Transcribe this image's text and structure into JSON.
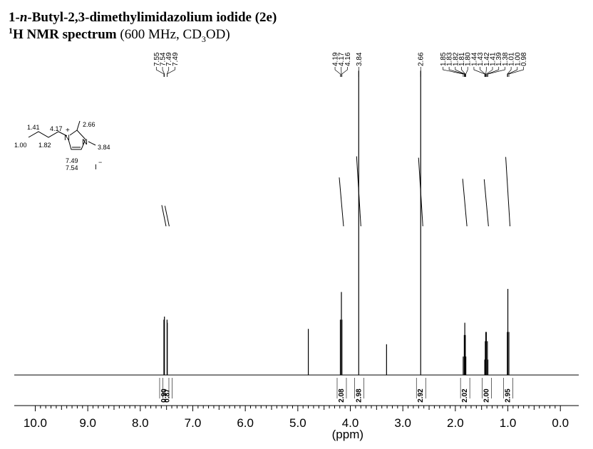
{
  "chart_data": {
    "type": "nmr",
    "title": [
      "1-",
      "n",
      "-Butyl-2,3-dimethylimidazolium iodide (2e)"
    ],
    "subtitle": [
      "1",
      "H NMR spectrum",
      " (600 MHz, CD",
      "3",
      "OD)"
    ],
    "xlabel": "(ppm)",
    "xlim": [
      10.4,
      -0.35
    ],
    "ylim": [
      0,
      1
    ],
    "xticks": [
      {
        "value": 10,
        "label": "10.0"
      },
      {
        "value": 9,
        "label": "9.0"
      },
      {
        "value": 8,
        "label": "8.0"
      },
      {
        "value": 7,
        "label": "7.0"
      },
      {
        "value": 6,
        "label": "6.0"
      },
      {
        "value": 5,
        "label": "5.0"
      },
      {
        "value": 4,
        "label": "4.0"
      },
      {
        "value": 3,
        "label": "3.0"
      },
      {
        "value": 2,
        "label": "2.0"
      },
      {
        "value": 1,
        "label": "1.0"
      },
      {
        "value": 0,
        "label": "0.0"
      }
    ],
    "color": "#000000",
    "x": [
      7.55,
      7.54,
      7.49,
      7.485,
      4.8,
      4.19,
      4.17,
      4.16,
      3.84,
      3.31,
      2.66,
      1.85,
      1.83,
      1.82,
      1.81,
      1.8,
      1.44,
      1.43,
      1.42,
      1.41,
      1.39,
      1.38,
      1.01,
      1.0,
      0.98
    ],
    "values": [
      0.18,
      0.19,
      0.18,
      0.17,
      0.15,
      0.18,
      0.27,
      0.18,
      0.99,
      0.1,
      0.99,
      0.06,
      0.13,
      0.17,
      0.13,
      0.06,
      0.05,
      0.11,
      0.14,
      0.14,
      0.11,
      0.05,
      0.14,
      0.28,
      0.14
    ],
    "peak_labels": [
      7.55,
      7.54,
      7.49,
      7.49,
      4.19,
      4.17,
      4.16,
      3.84,
      2.66,
      1.85,
      1.83,
      1.82,
      1.81,
      {
        "value": 1.8,
        "label": "1.80"
      },
      1.44,
      1.43,
      1.42,
      1.41,
      1.39,
      1.38,
      1.01,
      {
        "value": 1,
        "label": "1.00"
      },
      0.98
    ],
    "integrals": [
      {
        "x": 7.55,
        "value": 0.9,
        "label": "0.90"
      },
      {
        "x": 7.49,
        "value": 0.87,
        "label": "0.87"
      },
      {
        "x": 4.17,
        "value": 2.08,
        "label": "2.08"
      },
      {
        "x": 3.84,
        "value": 2.98,
        "label": "2.98"
      },
      {
        "x": 2.66,
        "value": 2.92,
        "label": "2.92"
      },
      {
        "x": 1.82,
        "value": 2.02,
        "label": "2.02"
      },
      {
        "x": 1.41,
        "value": 2,
        "label": "2.00"
      },
      {
        "x": 1,
        "value": 2.95,
        "label": "2.95"
      }
    ]
  },
  "structure": {
    "shifts": [
      "1.41",
      "4.17",
      "2.66",
      "1.00",
      "1.82",
      "3.84",
      "7.49",
      "7.54"
    ],
    "atoms": [
      "N",
      "+",
      "N",
      "I",
      "−"
    ]
  }
}
